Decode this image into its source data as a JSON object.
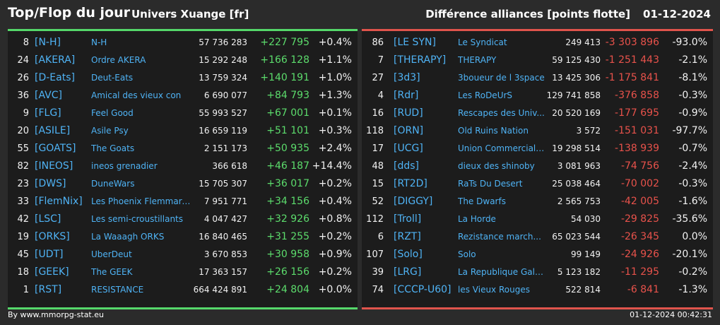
{
  "header": {
    "title": "Top/Flop du jour",
    "subtitle": "Univers Xuange [fr]",
    "right_title": "Différence alliances [points flotte]",
    "date": "01-12-2024"
  },
  "top": [
    {
      "rank": "8",
      "tag": "[N-H]",
      "name": "N-H",
      "points": "57 736 283",
      "diff": "+227 795",
      "pct": "+0.4%"
    },
    {
      "rank": "24",
      "tag": "[AKERA]",
      "name": "Ordre AKERA",
      "points": "15 292 248",
      "diff": "+166 128",
      "pct": "+1.1%"
    },
    {
      "rank": "26",
      "tag": "[D-Eats]",
      "name": "Deut-Eats",
      "points": "13 759 324",
      "diff": "+140 191",
      "pct": "+1.0%"
    },
    {
      "rank": "36",
      "tag": "[AVC]",
      "name": "Amical des vieux con",
      "points": "6 690 077",
      "diff": "+84 793",
      "pct": "+1.3%"
    },
    {
      "rank": "9",
      "tag": "[FLG]",
      "name": "Feel Good",
      "points": "55 993 527",
      "diff": "+67 001",
      "pct": "+0.1%"
    },
    {
      "rank": "20",
      "tag": "[ASILE]",
      "name": "Asile Psy",
      "points": "16 659 119",
      "diff": "+51 101",
      "pct": "+0.3%"
    },
    {
      "rank": "55",
      "tag": "[GOATS]",
      "name": "The Goats",
      "points": "2 151 173",
      "diff": "+50 935",
      "pct": "+2.4%"
    },
    {
      "rank": "82",
      "tag": "[INEOS]",
      "name": "ineos grenadier",
      "points": "366 618",
      "diff": "+46 187",
      "pct": "+14.4%"
    },
    {
      "rank": "23",
      "tag": "[DWS]",
      "name": "DuneWars",
      "points": "15 705 307",
      "diff": "+36 017",
      "pct": "+0.2%"
    },
    {
      "rank": "33",
      "tag": "[FlemNix]",
      "name": "Les Phoenix Flemmards",
      "points": "7 951 771",
      "diff": "+34 156",
      "pct": "+0.4%"
    },
    {
      "rank": "42",
      "tag": "[LSC]",
      "name": "Les semi-croustillants",
      "points": "4 047 427",
      "diff": "+32 926",
      "pct": "+0.8%"
    },
    {
      "rank": "19",
      "tag": "[ORKS]",
      "name": "La Waaagh ORKS",
      "points": "16 840 465",
      "diff": "+31 255",
      "pct": "+0.2%"
    },
    {
      "rank": "45",
      "tag": "[UDT]",
      "name": "UberDeut",
      "points": "3 670 853",
      "diff": "+30 958",
      "pct": "+0.9%"
    },
    {
      "rank": "18",
      "tag": "[GEEK]",
      "name": "The GEEK",
      "points": "17 363 157",
      "diff": "+26 156",
      "pct": "+0.2%"
    },
    {
      "rank": "1",
      "tag": "[RST]",
      "name": "RESISTANCE",
      "points": "664 424 891",
      "diff": "+24 804",
      "pct": "+0.0%"
    }
  ],
  "flop": [
    {
      "rank": "86",
      "tag": "[LE SYN]",
      "name": "Le Syndicat",
      "points": "249 413",
      "diff": "-3 303 896",
      "pct": "-93.0%"
    },
    {
      "rank": "7",
      "tag": "[THERAPY]",
      "name": "THERAPY",
      "points": "59 125 430",
      "diff": "-1 251 443",
      "pct": "-2.1%"
    },
    {
      "rank": "27",
      "tag": "[3d3]",
      "name": "3boueur de l 3space",
      "points": "13 425 306",
      "diff": "-1 175 841",
      "pct": "-8.1%"
    },
    {
      "rank": "4",
      "tag": "[Rdr]",
      "name": "Les RoDeUrS",
      "points": "129 741 858",
      "diff": "-376 858",
      "pct": "-0.3%"
    },
    {
      "rank": "16",
      "tag": "[RUD]",
      "name": "Rescapes des Univ...",
      "points": "20 520 169",
      "diff": "-177 695",
      "pct": "-0.9%"
    },
    {
      "rank": "118",
      "tag": "[ORN]",
      "name": "Old Ruins Nation",
      "points": "3 572",
      "diff": "-151 031",
      "pct": "-97.7%"
    },
    {
      "rank": "17",
      "tag": "[UCG]",
      "name": "Union Commerciale...",
      "points": "19 298 514",
      "diff": "-138 939",
      "pct": "-0.7%"
    },
    {
      "rank": "48",
      "tag": "[dds]",
      "name": "dieux des shinoby",
      "points": "3 081 963",
      "diff": "-74 756",
      "pct": "-2.4%"
    },
    {
      "rank": "15",
      "tag": "[RT2D]",
      "name": "RaTs Du Desert",
      "points": "25 038 464",
      "diff": "-70 002",
      "pct": "-0.3%"
    },
    {
      "rank": "52",
      "tag": "[DIGGY]",
      "name": "The Dwarfs",
      "points": "2 565 753",
      "diff": "-42 005",
      "pct": "-1.6%"
    },
    {
      "rank": "112",
      "tag": "[Troll]",
      "name": "La Horde",
      "points": "54 030",
      "diff": "-29 825",
      "pct": "-35.6%"
    },
    {
      "rank": "6",
      "tag": "[RZT]",
      "name": "Rezistance march...",
      "points": "65 023 544",
      "diff": "-26 345",
      "pct": "0.0%"
    },
    {
      "rank": "107",
      "tag": "[Solo]",
      "name": "Solo",
      "points": "99 149",
      "diff": "-24 926",
      "pct": "-20.1%"
    },
    {
      "rank": "39",
      "tag": "[LRG]",
      "name": "La Republique Gala...",
      "points": "5 123 182",
      "diff": "-11 295",
      "pct": "-0.2%"
    },
    {
      "rank": "74",
      "tag": "[CCCP-U60]",
      "name": "les Vieux Rouges",
      "points": "522 814",
      "diff": "-6 841",
      "pct": "-1.3%"
    }
  ],
  "footer": {
    "source": "By www.mmorpg-stat.eu",
    "timestamp": "01-12-2024 00:42:31"
  },
  "colors": {
    "background": "#2b2b2b",
    "panel": "#1c1c1c",
    "link": "#4fb3f5",
    "gain": "#5cdc6c",
    "loss": "#e8524b"
  }
}
